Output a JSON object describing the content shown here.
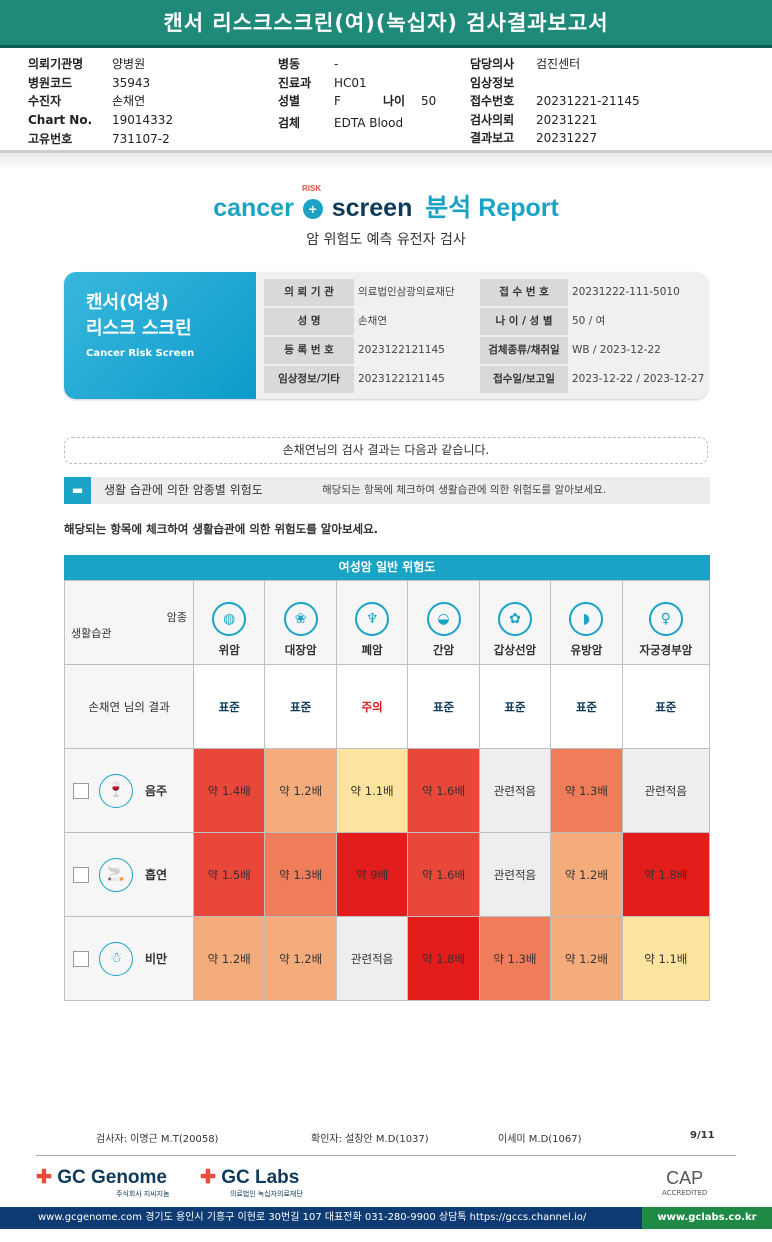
{
  "report_title": "캔서 리스크스크린(여)(녹십자) 검사결과보고서",
  "header": {
    "col1": [
      [
        "의뢰기관명",
        "양병원"
      ],
      [
        "병원코드",
        "35943"
      ],
      [
        "수진자",
        "손채연"
      ],
      [
        "Chart No.",
        "19014332"
      ],
      [
        "고유번호",
        "731107-2"
      ]
    ],
    "col2": [
      [
        "병동",
        "-"
      ],
      [
        "진료과",
        "HC01"
      ],
      [
        "성별",
        "F"
      ],
      [
        "검체",
        "EDTA Blood"
      ]
    ],
    "age_label": "나이",
    "age": "50",
    "col3": [
      [
        "담당의사",
        "검진센터"
      ],
      [
        "임상정보",
        ""
      ],
      [
        "접수번호",
        "20231221-21145"
      ],
      [
        "검사의뢰",
        "20231221"
      ],
      [
        "결과보고",
        "20231227"
      ]
    ]
  },
  "logo": {
    "cancer": "cancer",
    "risk": "RISK",
    "screen": "screen",
    "report": "분석 Report"
  },
  "subtitle": "암 위험도 예측 유전자 검사",
  "card": {
    "title1": "캔서(여성)",
    "title2": "리스크 스크린",
    "title_en": "Cancer Risk Screen",
    "left": [
      [
        "의 뢰 기 관",
        "의료법인삼광의료재단"
      ],
      [
        "성        명",
        "손채연"
      ],
      [
        "등 록 번 호",
        "2023122121145"
      ],
      [
        "임상정보/기타",
        "2023122121145"
      ]
    ],
    "right": [
      [
        "접 수 번 호",
        "20231222-111-5010"
      ],
      [
        "나 이 / 성 별",
        "50 / 여"
      ],
      [
        "검체종류/채취일",
        "WB / 2023-12-22"
      ],
      [
        "접수일/보고일",
        "2023-12-22 / 2023-12-27"
      ]
    ]
  },
  "notice": "손채연님의 검사 결과는 다음과 같습니다.",
  "section": {
    "title": "생활 습관에 의한 암종별 위험도",
    "desc": "해당되는 항목에 체크하여 생활습관에 의한 위험도를 알아보세요."
  },
  "note": "해당되는 항목에 체크하여 생활습관에 의한 위험도를 알아보세요.",
  "table": {
    "title": "여성암 일반 위험도",
    "corner_top": "암종",
    "corner_bottom": "생활습관",
    "cancers": [
      "위암",
      "대장암",
      "폐암",
      "간암",
      "갑상선암",
      "유방암",
      "자궁경부암"
    ],
    "result_label": "손채연 님의 결과",
    "results": [
      "표준",
      "표준",
      "주의",
      "표준",
      "표준",
      "표준",
      "표준"
    ],
    "rows": [
      {
        "name": "음주",
        "cells": [
          "약 1.4배",
          "약 1.2배",
          "약 1.1배",
          "약 1.6배",
          "관련적음",
          "약 1.3배",
          "관련적음"
        ]
      },
      {
        "name": "흡연",
        "cells": [
          "약 1.5배",
          "약 1.3배",
          "약 9배",
          "약 1.6배",
          "관련적음",
          "약 1.2배",
          "약 1.8배"
        ]
      },
      {
        "name": "비만",
        "cells": [
          "약 1.2배",
          "약 1.2배",
          "관련적음",
          "약 1.8배",
          "약 1.3배",
          "약 1.2배",
          "약 1.1배"
        ]
      }
    ],
    "colors": {
      "very_high": "#e31c1c",
      "high": "#e9473a",
      "mid": "#ef7d5a",
      "low": "#f5ac7c",
      "very_low": "#fbe3a0",
      "none": "#eeeeee",
      "warn_text": "#d81b1b",
      "std_text": "#0f3a5a"
    }
  },
  "footer": {
    "examiner": "검사자: 이명근 M.T(20058)",
    "confirm": "확인자: 설창안 M.D(1037)",
    "second": "이세미 M.D(1067)",
    "page": "9/11",
    "brand1": "GC Genome",
    "brand1_sub": "주식회사 지씨지놈",
    "brand2": "GC Labs",
    "brand2_sub": "의료법인 녹십자의료재단",
    "cap": "CAP",
    "cap_sub": "ACCREDITED",
    "address": "www.gcgenome.com 경기도 용인시 기흥구 이현로 30번길 107 대표전화 031-280-9900 상담톡 https://gccs.channel.io/",
    "site": "www.gclabs.co.kr"
  }
}
